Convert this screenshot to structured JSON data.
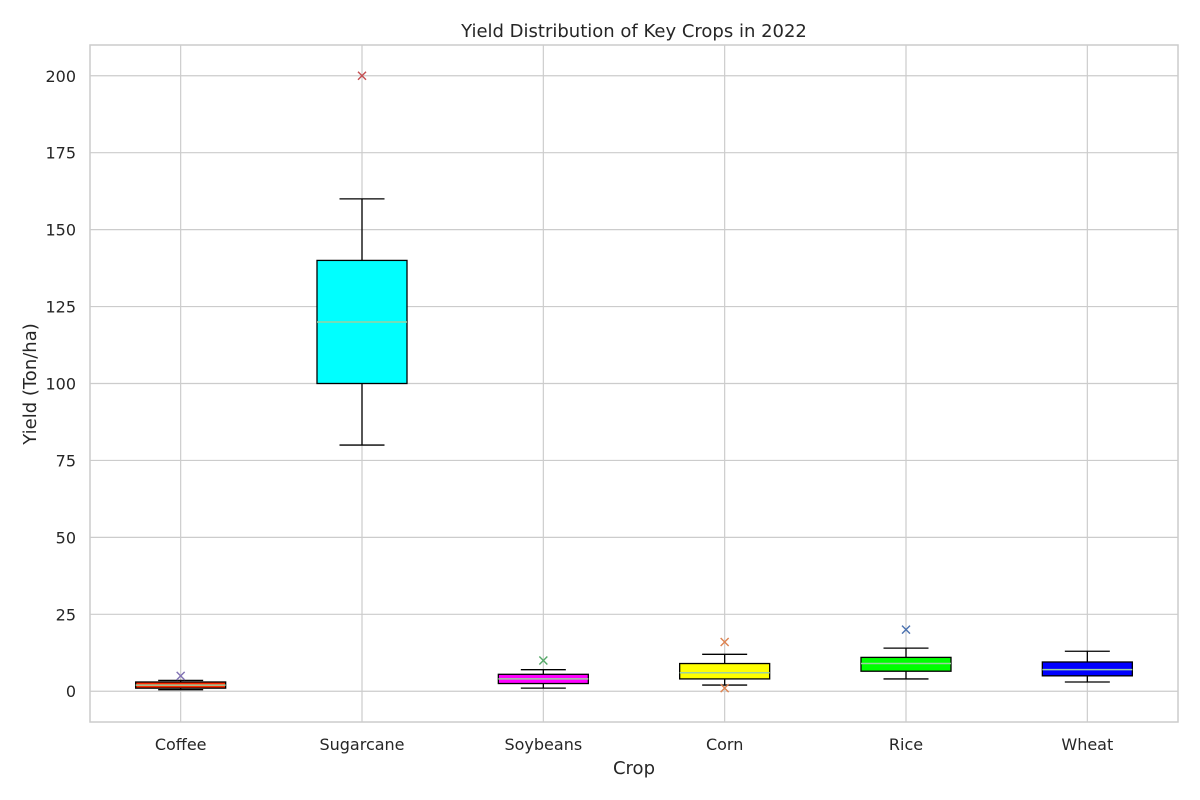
{
  "chart_data": {
    "type": "box",
    "title": "Yield Distribution of Key Crops in 2022",
    "xlabel": "Crop",
    "ylabel": "Yield (Ton/ha)",
    "ylim": [
      -10,
      210
    ],
    "yticks": [
      0,
      25,
      50,
      75,
      100,
      125,
      150,
      175,
      200
    ],
    "grid": true,
    "categories": [
      "Coffee",
      "Sugarcane",
      "Soybeans",
      "Corn",
      "Rice",
      "Wheat"
    ],
    "boxes": [
      {
        "name": "Coffee",
        "whisker_low": 0.5,
        "q1": 1,
        "median": 2,
        "q3": 3,
        "whisker_high": 3.5,
        "outliers": [
          5
        ],
        "fill": "#ff2a00",
        "outlier_color": "#8172b3"
      },
      {
        "name": "Sugarcane",
        "whisker_low": 80,
        "q1": 100,
        "median": 120,
        "q3": 140,
        "whisker_high": 160,
        "outliers": [
          200
        ],
        "fill": "#00ffff",
        "outlier_color": "#c44e52"
      },
      {
        "name": "Soybeans",
        "whisker_low": 1,
        "q1": 2.5,
        "median": 4,
        "q3": 5.5,
        "whisker_high": 7,
        "outliers": [
          10
        ],
        "fill": "#ff00ff",
        "outlier_color": "#55a868"
      },
      {
        "name": "Corn",
        "whisker_low": 2,
        "q1": 4,
        "median": 6,
        "q3": 9,
        "whisker_high": 12,
        "outliers": [
          1,
          16
        ],
        "fill": "#ffff00",
        "outlier_color": "#dd8452"
      },
      {
        "name": "Rice",
        "whisker_low": 4,
        "q1": 6.5,
        "median": 9,
        "q3": 11,
        "whisker_high": 14,
        "outliers": [
          20
        ],
        "fill": "#00ff00",
        "outlier_color": "#4c72b0"
      },
      {
        "name": "Wheat",
        "whisker_low": 3,
        "q1": 5,
        "median": 7,
        "q3": 9.5,
        "whisker_high": 13,
        "outliers": [],
        "fill": "#0000ff",
        "outlier_color": "#4c72b0"
      }
    ],
    "median_color": "#9bd1a0"
  }
}
